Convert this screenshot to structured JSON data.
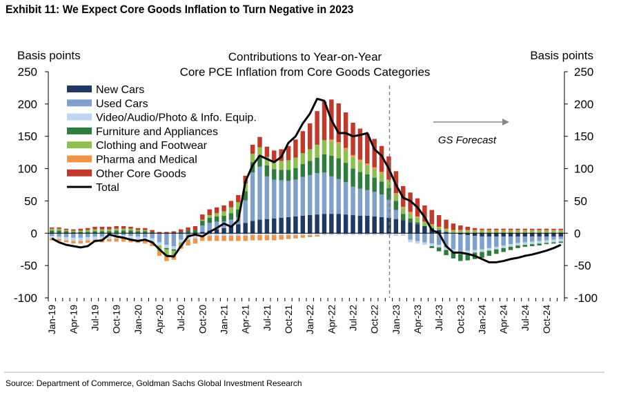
{
  "exhibit_title": "Exhibit 11: We Expect Core Goods Inflation to Turn Negative in 2023",
  "source": "Source: Department of Commerce, Goldman Sachs Global Investment Research",
  "chart_data": {
    "type": "bar",
    "stacked": true,
    "title_lines": [
      "Contributions to Year-on-Year",
      "Core PCE Inflation from Core Goods Categories"
    ],
    "ylabel_left": "Basis points",
    "ylabel_right": "Basis points",
    "ylim": [
      -100,
      250
    ],
    "yticks": [
      -100,
      -50,
      0,
      50,
      100,
      150,
      200,
      250
    ],
    "x_tick_labels": [
      "Jan-19",
      "Apr-19",
      "Jul-19",
      "Oct-19",
      "Jan-20",
      "Apr-20",
      "Jul-20",
      "Oct-20",
      "Jan-21",
      "Apr-21",
      "Jul-21",
      "Oct-21",
      "Jan-22",
      "Apr-22",
      "Jul-22",
      "Oct-22",
      "Jan-23",
      "Apr-23",
      "Jul-23",
      "Oct-23",
      "Jan-24",
      "Apr-24",
      "Jul-24",
      "Oct-24"
    ],
    "forecast_start_month": "Dec-22",
    "forecast_label": "GS Forecast",
    "legend_placement": "top-left",
    "grid": false,
    "months": [
      "Jan-19",
      "Feb-19",
      "Mar-19",
      "Apr-19",
      "May-19",
      "Jun-19",
      "Jul-19",
      "Aug-19",
      "Sep-19",
      "Oct-19",
      "Nov-19",
      "Dec-19",
      "Jan-20",
      "Feb-20",
      "Mar-20",
      "Apr-20",
      "May-20",
      "Jun-20",
      "Jul-20",
      "Aug-20",
      "Sep-20",
      "Oct-20",
      "Nov-20",
      "Dec-20",
      "Jan-21",
      "Feb-21",
      "Mar-21",
      "Apr-21",
      "May-21",
      "Jun-21",
      "Jul-21",
      "Aug-21",
      "Sep-21",
      "Oct-21",
      "Nov-21",
      "Dec-21",
      "Jan-22",
      "Feb-22",
      "Mar-22",
      "Apr-22",
      "May-22",
      "Jun-22",
      "Jul-22",
      "Aug-22",
      "Sep-22",
      "Oct-22",
      "Nov-22",
      "Dec-22",
      "Jan-23",
      "Feb-23",
      "Mar-23",
      "Apr-23",
      "May-23",
      "Jun-23",
      "Jul-23",
      "Aug-23",
      "Sep-23",
      "Oct-23",
      "Nov-23",
      "Dec-23",
      "Jan-24",
      "Feb-24",
      "Mar-24",
      "Apr-24",
      "May-24",
      "Jun-24",
      "Jul-24",
      "Aug-24",
      "Sep-24",
      "Oct-24",
      "Nov-24",
      "Dec-24"
    ],
    "series": [
      {
        "name": "New Cars",
        "color": "#1f3864",
        "kind": "bar",
        "values": [
          0,
          0,
          0,
          0,
          0,
          0,
          0,
          0,
          0,
          0,
          0,
          0,
          0,
          0,
          0,
          0,
          0,
          0,
          0,
          0,
          0,
          2,
          4,
          6,
          8,
          11,
          14,
          16,
          19,
          21,
          22,
          23,
          24,
          25,
          26,
          27,
          28,
          29,
          30,
          30,
          30,
          29,
          28,
          27,
          27,
          26,
          25,
          24,
          22,
          20,
          17,
          14,
          11,
          8,
          5,
          2,
          0,
          -2,
          -3,
          -4,
          -5,
          -5,
          -5,
          -5,
          -5,
          -5,
          -5,
          -5,
          -5,
          -5,
          -5,
          -5
        ]
      },
      {
        "name": "Used Cars",
        "color": "#7f9fcc",
        "kind": "bar",
        "values": [
          -4,
          -5,
          -6,
          -7,
          -7,
          -6,
          -5,
          -5,
          -4,
          -3,
          -3,
          -4,
          -5,
          -6,
          -8,
          -14,
          -18,
          -20,
          -10,
          -6,
          -4,
          10,
          12,
          12,
          10,
          10,
          11,
          35,
          75,
          82,
          66,
          60,
          58,
          56,
          57,
          60,
          62,
          64,
          64,
          58,
          54,
          50,
          44,
          42,
          40,
          38,
          35,
          28,
          14,
          0,
          -10,
          -12,
          -14,
          -16,
          -18,
          -22,
          -25,
          -26,
          -24,
          -22,
          -20,
          -18,
          -16,
          -14,
          -12,
          -10,
          -9,
          -8,
          -7,
          -6,
          -5,
          -4
        ]
      },
      {
        "name": "Video/Audio/Photo & Info. Equip.",
        "color": "#bcd7ef",
        "kind": "bar",
        "values": [
          -4,
          -4,
          -5,
          -5,
          -5,
          -5,
          -5,
          -5,
          -5,
          -5,
          -5,
          -5,
          -5,
          -5,
          -5,
          -5,
          -5,
          -5,
          -4,
          -4,
          -4,
          -4,
          -4,
          -4,
          -4,
          -4,
          -4,
          -4,
          -3,
          -3,
          -3,
          -3,
          -3,
          -3,
          -3,
          -3,
          -3,
          -3,
          -3,
          -3,
          -3,
          -3,
          -3,
          -3,
          -3,
          -3,
          -3,
          -3,
          -4,
          -4,
          -4,
          -4,
          -4,
          -4,
          -4,
          -4,
          -4,
          -4,
          -4,
          -4,
          -4,
          -4,
          -4,
          -4,
          -4,
          -4,
          -4,
          -4,
          -4,
          -4,
          -4,
          -4
        ]
      },
      {
        "name": "Furniture and Appliances",
        "color": "#2e7d3e",
        "kind": "bar",
        "values": [
          4,
          4,
          3,
          2,
          2,
          2,
          3,
          3,
          3,
          4,
          4,
          4,
          3,
          3,
          2,
          0,
          -2,
          -2,
          2,
          4,
          5,
          7,
          8,
          8,
          9,
          10,
          12,
          14,
          16,
          17,
          17,
          16,
          16,
          17,
          18,
          20,
          22,
          24,
          28,
          32,
          32,
          30,
          28,
          26,
          24,
          22,
          20,
          18,
          14,
          10,
          6,
          3,
          0,
          -3,
          -6,
          -8,
          -10,
          -11,
          -11,
          -10,
          -9,
          -8,
          -7,
          -6,
          -5,
          -4,
          -3,
          -3,
          -3,
          -2,
          -2,
          -2
        ]
      },
      {
        "name": "Clothing and Footwear",
        "color": "#8fc04f",
        "kind": "bar",
        "values": [
          3,
          3,
          2,
          2,
          2,
          3,
          3,
          3,
          3,
          3,
          3,
          3,
          2,
          2,
          -2,
          -10,
          -12,
          -8,
          -4,
          -2,
          0,
          2,
          4,
          5,
          7,
          9,
          11,
          12,
          13,
          13,
          13,
          13,
          14,
          15,
          16,
          17,
          18,
          20,
          22,
          23,
          22,
          20,
          18,
          16,
          14,
          13,
          12,
          11,
          10,
          9,
          8,
          7,
          6,
          5,
          4,
          4,
          4,
          4,
          4,
          4,
          4,
          4,
          4,
          4,
          4,
          4,
          4,
          4,
          4,
          4,
          4,
          4
        ]
      },
      {
        "name": "Pharma and Medical",
        "color": "#f0944a",
        "kind": "bar",
        "values": [
          -3,
          -3,
          -3,
          -4,
          -4,
          -4,
          -4,
          -4,
          -4,
          -5,
          -5,
          -5,
          -5,
          -5,
          -5,
          -6,
          -6,
          -6,
          -6,
          -7,
          -8,
          -8,
          -8,
          -8,
          -8,
          -8,
          -8,
          -8,
          -8,
          -8,
          -8,
          -8,
          -7,
          -6,
          -5,
          -4,
          -3,
          -2,
          0,
          2,
          3,
          3,
          3,
          3,
          3,
          3,
          3,
          2,
          2,
          2,
          2,
          2,
          1,
          1,
          1,
          1,
          1,
          1,
          1,
          1,
          1,
          1,
          1,
          1,
          1,
          1,
          1,
          1,
          1,
          1,
          1,
          1
        ]
      },
      {
        "name": "Other Core Goods",
        "color": "#c0392b",
        "kind": "bar",
        "values": [
          2,
          2,
          2,
          2,
          3,
          3,
          4,
          4,
          4,
          4,
          4,
          3,
          3,
          3,
          3,
          2,
          2,
          3,
          4,
          5,
          6,
          8,
          9,
          9,
          9,
          10,
          11,
          12,
          14,
          16,
          16,
          16,
          18,
          22,
          28,
          34,
          40,
          52,
          60,
          62,
          60,
          55,
          50,
          48,
          46,
          44,
          40,
          36,
          34,
          32,
          30,
          28,
          25,
          22,
          18,
          14,
          10,
          7,
          5,
          3,
          2,
          2,
          2,
          2,
          2,
          2,
          2,
          2,
          2,
          2,
          2,
          2
        ]
      },
      {
        "name": "Total",
        "color": "#000000",
        "kind": "line",
        "values": [
          -8,
          -14,
          -18,
          -20,
          -22,
          -20,
          -12,
          -11,
          -2,
          -5,
          -7,
          -10,
          -12,
          -10,
          -14,
          -25,
          -35,
          -36,
          -20,
          -5,
          -2,
          -5,
          2,
          8,
          15,
          10,
          20,
          80,
          105,
          120,
          115,
          110,
          118,
          140,
          150,
          170,
          185,
          208,
          205,
          175,
          155,
          155,
          150,
          152,
          155,
          130,
          120,
          100,
          75,
          55,
          50,
          40,
          25,
          5,
          0,
          -20,
          -30,
          -30,
          -32,
          -35,
          -40,
          -45,
          -45,
          -43,
          -40,
          -38,
          -35,
          -33,
          -30,
          -27,
          -23,
          -18
        ]
      }
    ]
  }
}
